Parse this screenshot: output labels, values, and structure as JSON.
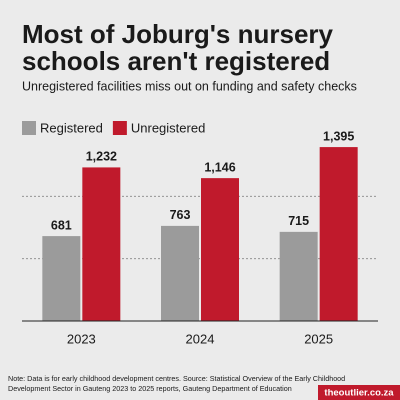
{
  "chart_data": {
    "type": "bar",
    "title": [
      "Most of Joburg's nursery",
      "schools aren't registered"
    ],
    "subtitle": "Unregistered facilities miss out on funding and safety checks",
    "categories": [
      "2023",
      "2024",
      "2025"
    ],
    "series": [
      {
        "name": "Registered",
        "color": "#9b9b9b",
        "values": [
          681,
          763,
          715
        ],
        "value_labels": [
          "681",
          "763",
          "715"
        ]
      },
      {
        "name": "Unregistered",
        "color": "#c01a2c",
        "values": [
          1232,
          1146,
          1395
        ],
        "value_labels": [
          "1,232",
          "1,146",
          "1,395"
        ]
      }
    ],
    "ylim": [
      0,
      1500
    ],
    "yticks": [
      500,
      1000
    ],
    "grid": true,
    "note": [
      "Note: Data is for early childhood development centres. Source: Statistical Overview of the Early Childhood",
      "Development Sector in Gauteng 2023 to 2025 reports, Gauteng Department of Education"
    ],
    "brand": "theoutlier.co.za"
  }
}
